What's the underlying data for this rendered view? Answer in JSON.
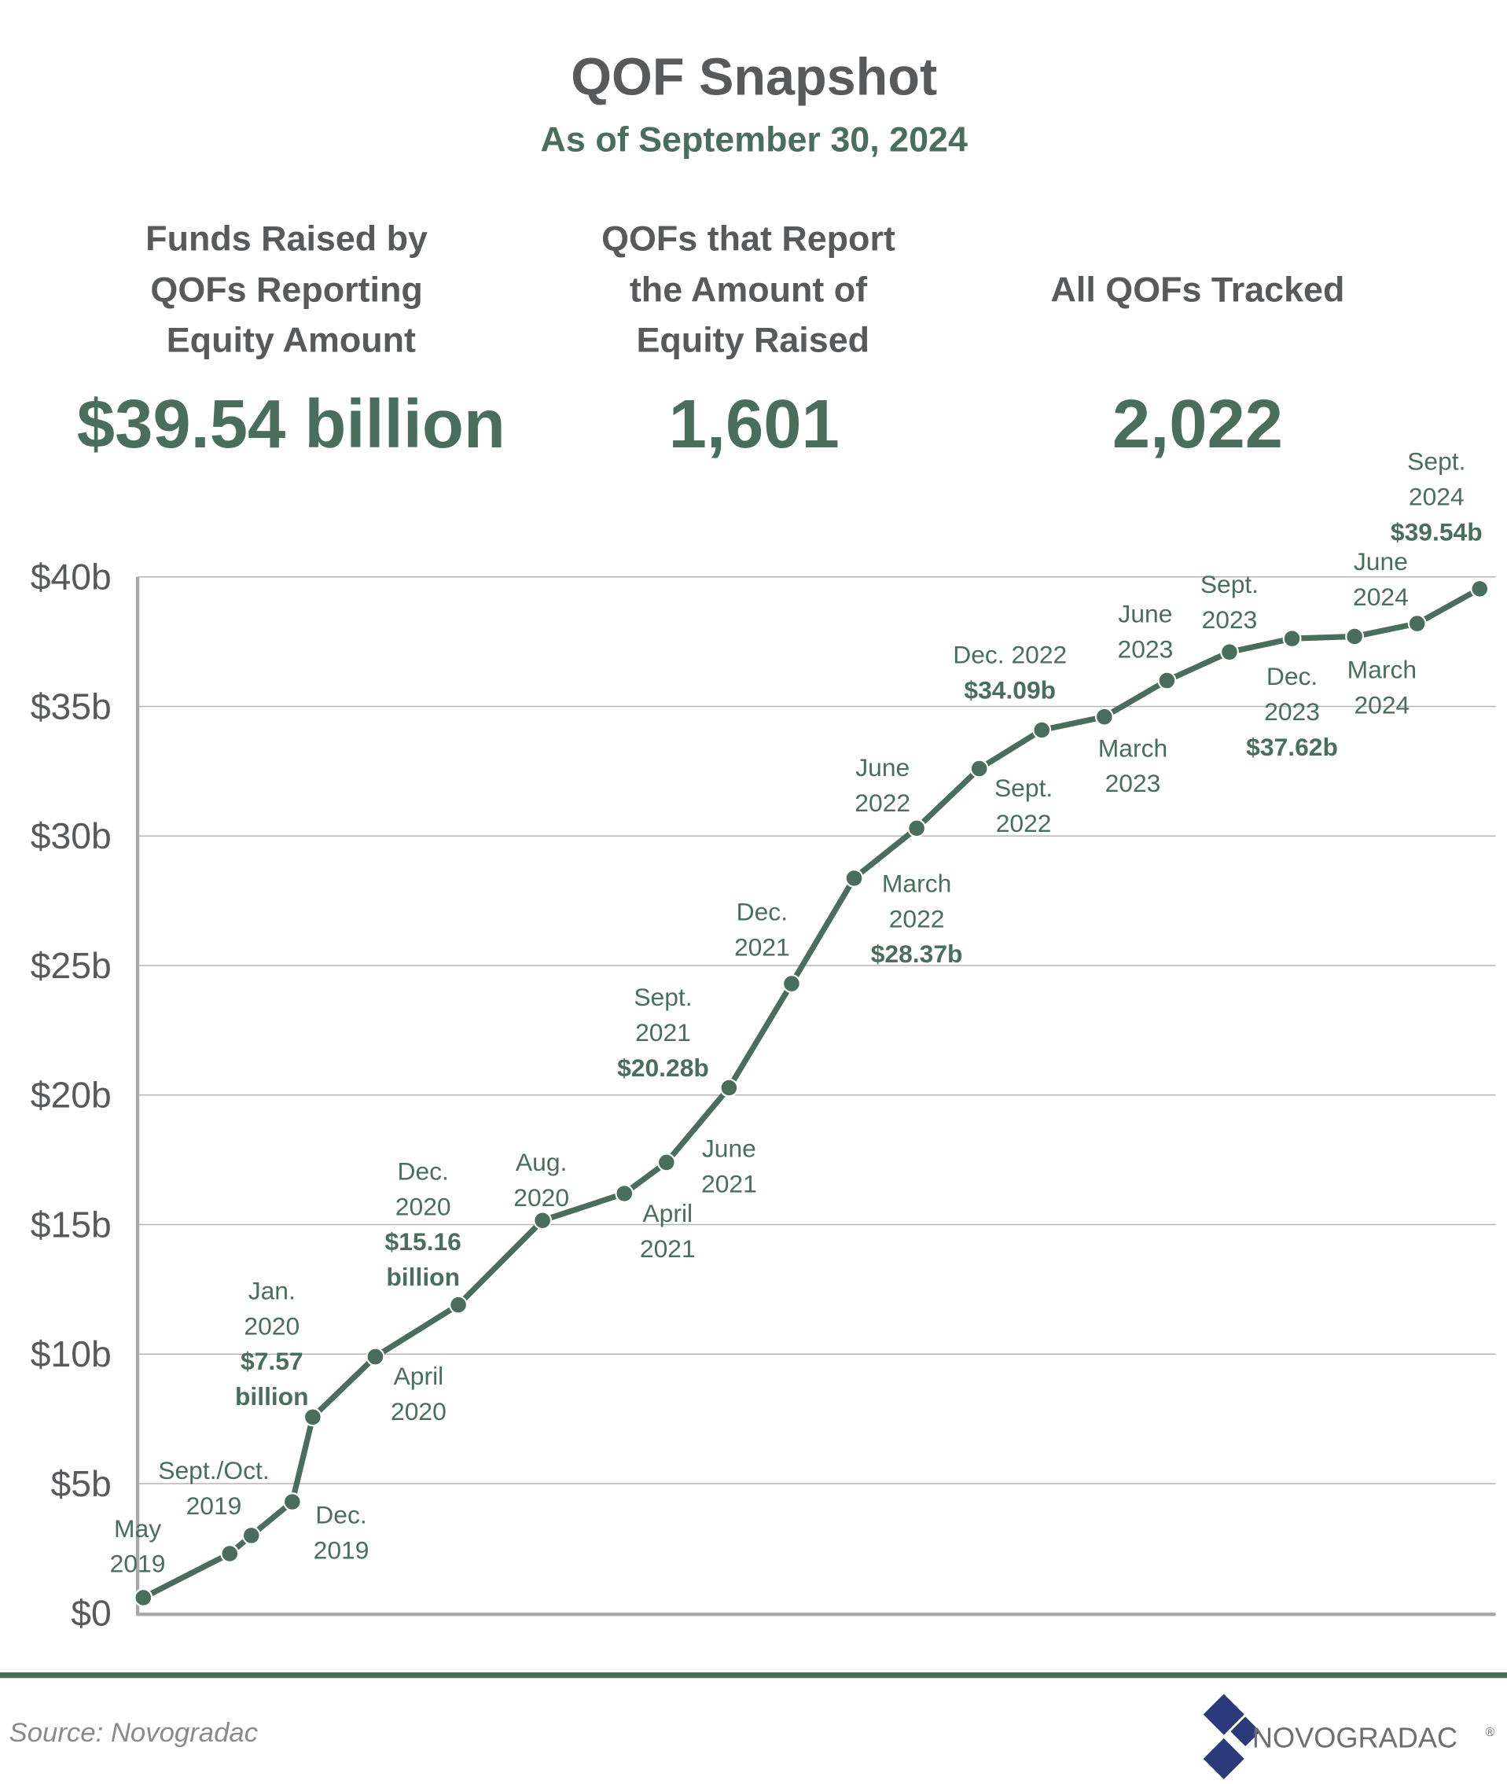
{
  "header": {
    "title": "QOF Snapshot",
    "subtitle": "As of September 30, 2024"
  },
  "stats": [
    {
      "label_lines": [
        "Funds Raised by",
        "QOFs Reporting",
        "Equity Amount"
      ],
      "value": "$39.54 billion"
    },
    {
      "label_lines": [
        "QOFs that Report",
        "the Amount of",
        "Equity Raised"
      ],
      "value": "1,601"
    },
    {
      "label_lines": [
        "All QOFs Tracked"
      ],
      "value": "2,022"
    }
  ],
  "chart_data": {
    "type": "line",
    "title": "",
    "xlabel": "",
    "ylabel": "",
    "ylim": [
      0,
      40
    ],
    "y_unit": "billion USD",
    "y_tick_labels": [
      "$0",
      "$5b",
      "$10b",
      "$15b",
      "$20b",
      "$25b",
      "$30b",
      "$35b",
      "$40b"
    ],
    "y_ticks": [
      0,
      5,
      10,
      15,
      20,
      25,
      30,
      35,
      40
    ],
    "grid": true,
    "color": "#4a6e5e",
    "points": [
      {
        "x": "May 2019",
        "y": 0.6
      },
      {
        "x": "Sept. 2019",
        "y": 2.3
      },
      {
        "x": "Oct. 2019",
        "y": 3.0
      },
      {
        "x": "Dec. 2019",
        "y": 4.3
      },
      {
        "x": "Jan. 2020",
        "y": 7.57
      },
      {
        "x": "April 2020",
        "y": 9.9
      },
      {
        "x": "Aug. 2020",
        "y": 11.9
      },
      {
        "x": "Dec. 2020",
        "y": 15.16
      },
      {
        "x": "April 2021",
        "y": 16.2
      },
      {
        "x": "June 2021",
        "y": 17.4
      },
      {
        "x": "Sept. 2021",
        "y": 20.28
      },
      {
        "x": "Dec. 2021",
        "y": 24.3
      },
      {
        "x": "March 2022",
        "y": 28.37
      },
      {
        "x": "June 2022",
        "y": 30.3
      },
      {
        "x": "Sept. 2022",
        "y": 32.6
      },
      {
        "x": "Dec. 2022",
        "y": 34.09
      },
      {
        "x": "March 2023",
        "y": 34.6
      },
      {
        "x": "June 2023",
        "y": 36.0
      },
      {
        "x": "Sept. 2023",
        "y": 37.1
      },
      {
        "x": "Dec. 2023",
        "y": 37.62
      },
      {
        "x": "March 2024",
        "y": 37.7
      },
      {
        "x": "June 2024",
        "y": 38.2
      },
      {
        "x": "Sept. 2024",
        "y": 39.54
      }
    ],
    "annotations": [
      {
        "lines": [
          "May",
          "2019"
        ],
        "bold": []
      },
      {
        "lines": [
          "Sept./Oct.",
          "2019"
        ],
        "bold": []
      },
      {
        "lines": [
          "Dec.",
          "2019"
        ],
        "bold": []
      },
      {
        "lines": [
          "Jan.",
          "2020"
        ],
        "bold": [
          "$7.57",
          "billion"
        ]
      },
      {
        "lines": [
          "April",
          "2020"
        ],
        "bold": []
      },
      {
        "lines": [
          "Dec.",
          "2020"
        ],
        "bold": [
          "$15.16",
          "billion"
        ]
      },
      {
        "lines": [
          "Aug.",
          "2020"
        ],
        "bold": []
      },
      {
        "lines": [
          "April",
          "2021"
        ],
        "bold": []
      },
      {
        "lines": [
          "June",
          "2021"
        ],
        "bold": []
      },
      {
        "lines": [
          "Sept.",
          "2021"
        ],
        "bold": [
          "$20.28b"
        ]
      },
      {
        "lines": [
          "Dec.",
          "2021"
        ],
        "bold": []
      },
      {
        "lines": [
          "June",
          "2022"
        ],
        "bold": []
      },
      {
        "lines": [
          "March",
          "2022"
        ],
        "bold": [
          "$28.37b"
        ]
      },
      {
        "lines": [
          "Sept.",
          "2022"
        ],
        "bold": []
      },
      {
        "lines": [
          "Dec. 2022"
        ],
        "bold": [
          "$34.09b"
        ]
      },
      {
        "lines": [
          "March",
          "2023"
        ],
        "bold": []
      },
      {
        "lines": [
          "June",
          "2023"
        ],
        "bold": []
      },
      {
        "lines": [
          "Sept.",
          "2023"
        ],
        "bold": []
      },
      {
        "lines": [
          "Dec.",
          "2023"
        ],
        "bold": [
          "$37.62b"
        ]
      },
      {
        "lines": [
          "March",
          "2024"
        ],
        "bold": []
      },
      {
        "lines": [
          "June",
          "2024"
        ],
        "bold": []
      },
      {
        "lines": [
          "Sept.",
          "2024"
        ],
        "bold": [
          "$39.54b"
        ]
      }
    ]
  },
  "footer": {
    "source": "Source: Novogradac",
    "logo_text": "NOVOGRADAC",
    "logo_mark": "®",
    "bar_color": "#4a6e5e",
    "logo_color": "#2b3a7a"
  }
}
